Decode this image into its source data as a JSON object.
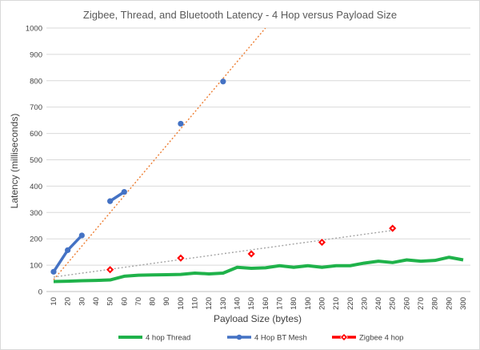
{
  "chart_data": {
    "type": "line",
    "title": "Zigbee, Thread, and Bluetooth Latency - 4 Hop versus Payload Size",
    "xlabel": "Payload Size (bytes)",
    "ylabel": "Latency (milliseconds)",
    "xlim": [
      10,
      300
    ],
    "ylim": [
      0,
      1000
    ],
    "x_ticks": [
      10,
      20,
      30,
      40,
      50,
      60,
      70,
      80,
      90,
      100,
      110,
      120,
      130,
      140,
      150,
      160,
      170,
      180,
      190,
      200,
      210,
      220,
      230,
      240,
      250,
      260,
      270,
      280,
      290,
      300
    ],
    "y_ticks": [
      0,
      100,
      200,
      300,
      400,
      500,
      600,
      700,
      800,
      900,
      1000
    ],
    "grid": "horizontal",
    "legend_position": "bottom",
    "series": [
      {
        "name": "4 hop Thread",
        "color": "#1fb24a",
        "marker": "none",
        "x": [
          10,
          20,
          30,
          40,
          50,
          60,
          70,
          80,
          90,
          100,
          110,
          120,
          130,
          140,
          150,
          160,
          170,
          180,
          190,
          200,
          210,
          220,
          230,
          240,
          250,
          260,
          270,
          280,
          290,
          300
        ],
        "values": [
          38,
          39,
          41,
          42,
          44,
          58,
          62,
          63,
          64,
          65,
          70,
          67,
          70,
          92,
          88,
          90,
          98,
          92,
          98,
          92,
          98,
          98,
          108,
          115,
          110,
          120,
          115,
          118,
          130,
          120
        ]
      },
      {
        "name": "4 Hop BT Mesh",
        "color": "#4472c4",
        "marker": "circle",
        "x": [
          10,
          20,
          30,
          50,
          60,
          100,
          130
        ],
        "values": [
          75,
          157,
          213,
          343,
          378,
          637,
          797
        ]
      },
      {
        "name": "Zigbee 4 hop",
        "color": "#ff0000",
        "marker": "diamond",
        "x": [
          50,
          100,
          150,
          200,
          250
        ],
        "values": [
          83,
          127,
          143,
          187,
          240
        ]
      }
    ],
    "trendlines": [
      {
        "of": "4 Hop BT Mesh",
        "color": "#ed7d31",
        "x": [
          10,
          160
        ],
        "values": [
          45,
          1000
        ]
      },
      {
        "of": "Zigbee 4 hop",
        "color": "#a5a5a5",
        "x": [
          10,
          250
        ],
        "values": [
          55,
          232
        ]
      }
    ]
  }
}
